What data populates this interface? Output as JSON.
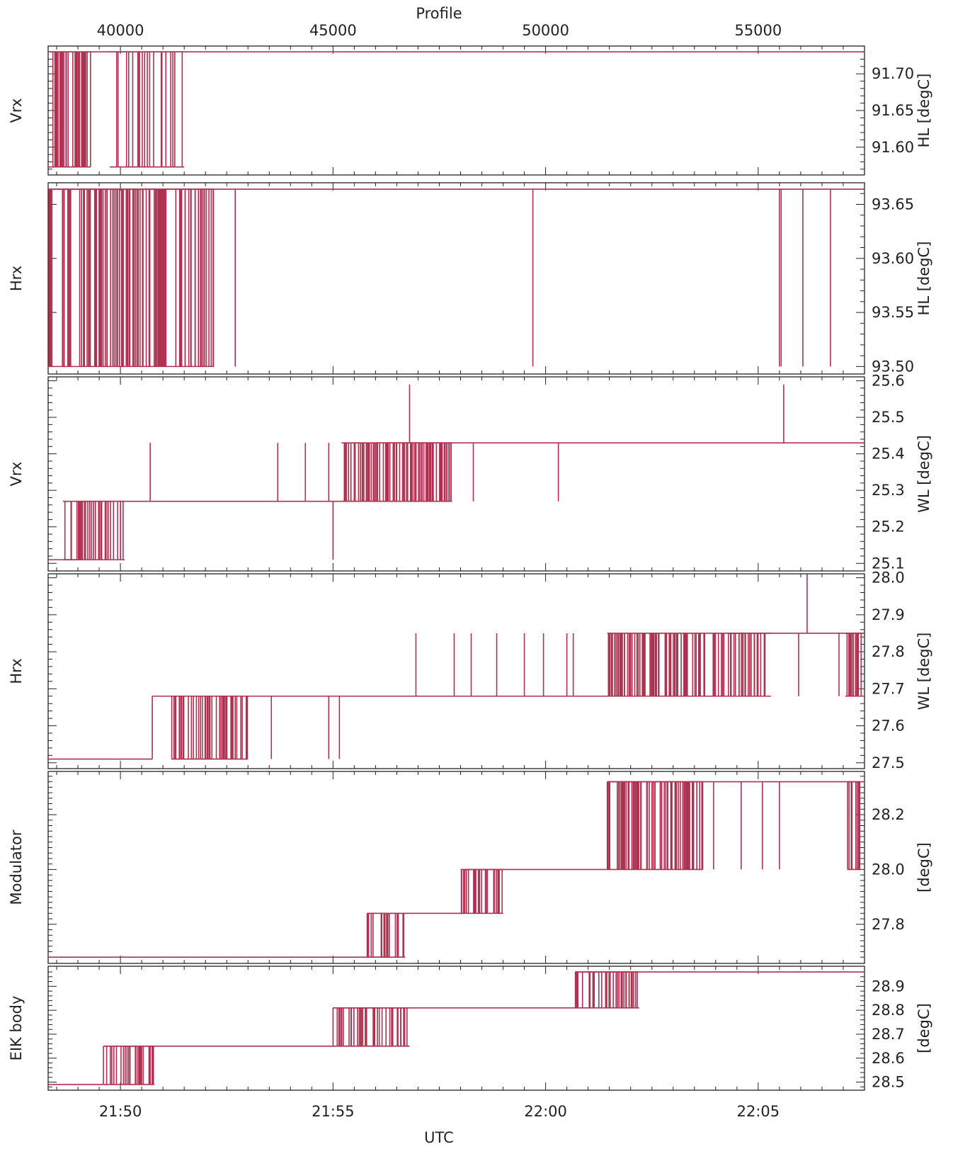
{
  "figure": {
    "top_axis_label": "Profile",
    "bottom_axis_label": "UTC",
    "top_ticks": [
      {
        "value": 40000,
        "label": "40000"
      },
      {
        "value": 45000,
        "label": "45000"
      },
      {
        "value": 50000,
        "label": "50000"
      },
      {
        "value": 55000,
        "label": "55000"
      }
    ],
    "bottom_ticks": [
      {
        "value": 40000,
        "label": "21:50"
      },
      {
        "value": 45000,
        "label": "21:55"
      },
      {
        "value": 50000,
        "label": "22:00"
      },
      {
        "value": 55000,
        "label": "22:05"
      }
    ],
    "x_range": [
      38300,
      57500
    ],
    "colors": {
      "series": "#b03050",
      "axis": "#222222",
      "background": "#ffffff"
    }
  },
  "chart_data": [
    {
      "type": "line",
      "left_label": "Vrx",
      "right_label": "HL [degC]",
      "ylim": [
        91.565,
        91.735
      ],
      "ticks": [
        91.6,
        91.65,
        91.7
      ],
      "tick_format": 2,
      "levels": [
        91.573,
        91.73
      ],
      "base": 91.73,
      "toggles": [
        {
          "x0": 38300,
          "x1": 39300,
          "n": 34
        },
        {
          "x0": 39750,
          "x1": 41500,
          "n": 22
        }
      ],
      "spikes": []
    },
    {
      "type": "line",
      "left_label": "Hrx",
      "right_label": "HL [degC]",
      "ylim": [
        93.495,
        93.668
      ],
      "ticks": [
        93.5,
        93.55,
        93.6,
        93.65
      ],
      "tick_format": 2,
      "levels": [
        93.5,
        93.664
      ],
      "base": 93.664,
      "toggles": [
        {
          "x0": 38300,
          "x1": 42200,
          "n": 120
        }
      ],
      "spikes": [
        {
          "x": 42700,
          "to": 93.5
        },
        {
          "x": 49700,
          "to": 93.5
        },
        {
          "x": 55500,
          "to": 93.5
        },
        {
          "x": 55540,
          "to": 93.5
        },
        {
          "x": 56050,
          "to": 93.5
        },
        {
          "x": 56700,
          "to": 93.5
        }
      ]
    },
    {
      "type": "line",
      "left_label": "Vrx",
      "right_label": "WL [degC]",
      "ylim": [
        25.085,
        25.605
      ],
      "ticks": [
        25.1,
        25.2,
        25.3,
        25.4,
        25.5,
        25.6
      ],
      "tick_format": 1,
      "levels": [
        25.11,
        25.27,
        25.43
      ],
      "segments": [
        {
          "x0": 38300,
          "x1": 39100,
          "value": 25.11
        },
        {
          "x0": 39100,
          "x1": 41000,
          "value": 25.27
        },
        {
          "x0": 41000,
          "x1": 46000,
          "value": 25.27
        },
        {
          "x0": 46000,
          "x1": 57500,
          "value": 25.43
        }
      ],
      "toggles": [
        {
          "x0": 38650,
          "x1": 40100,
          "n": 36,
          "a": 25.11,
          "b": 25.27
        },
        {
          "x0": 45200,
          "x1": 47800,
          "n": 90,
          "a": 25.27,
          "b": 25.43
        }
      ],
      "spikes": [
        {
          "x": 40700,
          "to": 25.43
        },
        {
          "x": 43700,
          "to": 25.43
        },
        {
          "x": 44350,
          "to": 25.43
        },
        {
          "x": 44900,
          "to": 25.43
        },
        {
          "x": 45000,
          "to": 25.11
        },
        {
          "x": 46800,
          "to": 25.59
        },
        {
          "x": 48300,
          "to": 25.27
        },
        {
          "x": 50300,
          "to": 25.27
        },
        {
          "x": 55600,
          "to": 25.59
        }
      ]
    },
    {
      "type": "line",
      "left_label": "Hrx",
      "right_label": "WL [degC]",
      "ylim": [
        27.49,
        28.005
      ],
      "ticks": [
        27.5,
        27.6,
        27.7,
        27.8,
        27.9,
        28.0
      ],
      "tick_format": 1,
      "levels": [
        27.51,
        27.68,
        27.85
      ],
      "segments": [
        {
          "x0": 38300,
          "x1": 40750,
          "value": 27.51
        },
        {
          "x0": 40750,
          "x1": 45200,
          "value": 27.68
        },
        {
          "x0": 45200,
          "x1": 54300,
          "value": 27.68
        },
        {
          "x0": 54300,
          "x1": 57500,
          "value": 27.85
        }
      ],
      "toggles": [
        {
          "x0": 41200,
          "x1": 43000,
          "n": 50,
          "a": 27.51,
          "b": 27.68
        },
        {
          "x0": 51450,
          "x1": 55300,
          "n": 110,
          "a": 27.68,
          "b": 27.85
        },
        {
          "x0": 57050,
          "x1": 57450,
          "n": 14,
          "a": 27.68,
          "b": 27.85
        }
      ],
      "spikes": [
        {
          "x": 43550,
          "to": 27.51
        },
        {
          "x": 44900,
          "to": 27.51
        },
        {
          "x": 45150,
          "to": 27.51
        },
        {
          "x": 46950,
          "to": 27.85
        },
        {
          "x": 47850,
          "to": 27.85
        },
        {
          "x": 48250,
          "to": 27.85
        },
        {
          "x": 48850,
          "to": 27.85
        },
        {
          "x": 49500,
          "to": 27.85
        },
        {
          "x": 49950,
          "to": 27.85
        },
        {
          "x": 50500,
          "to": 27.85
        },
        {
          "x": 50650,
          "to": 27.85
        },
        {
          "x": 55950,
          "to": 27.68
        },
        {
          "x": 56150,
          "to": 28.01
        },
        {
          "x": 56900,
          "to": 27.68
        }
      ]
    },
    {
      "type": "line",
      "left_label": "Modulator",
      "right_label": "[degC]",
      "ylim": [
        27.665,
        28.35
      ],
      "ticks": [
        27.8,
        28.0,
        28.2
      ],
      "tick_format": 1,
      "levels": [
        27.68,
        27.84,
        28.0,
        28.32
      ],
      "segments": [
        {
          "x0": 38300,
          "x1": 46200,
          "value": 27.68
        },
        {
          "x0": 46200,
          "x1": 48100,
          "value": 27.84
        },
        {
          "x0": 48100,
          "x1": 51450,
          "value": 28.0
        },
        {
          "x0": 51450,
          "x1": 57500,
          "value": 28.32
        }
      ],
      "toggles": [
        {
          "x0": 45800,
          "x1": 46700,
          "n": 22,
          "a": 27.68,
          "b": 27.84
        },
        {
          "x0": 48000,
          "x1": 49000,
          "n": 26,
          "a": 27.84,
          "b": 28.0
        },
        {
          "x0": 51450,
          "x1": 53700,
          "n": 70,
          "a": 28.0,
          "b": 28.32
        },
        {
          "x0": 57100,
          "x1": 57400,
          "n": 10,
          "a": 28.0,
          "b": 28.32
        }
      ],
      "spikes": [
        {
          "x": 53950,
          "to": 28.0
        },
        {
          "x": 54600,
          "to": 28.0
        },
        {
          "x": 55100,
          "to": 28.0
        },
        {
          "x": 55500,
          "to": 28.0
        }
      ]
    },
    {
      "type": "line",
      "left_label": "EIK body",
      "right_label": "[degC]",
      "ylim": [
        28.475,
        28.975
      ],
      "ticks": [
        28.5,
        28.6,
        28.7,
        28.8,
        28.9
      ],
      "tick_format": 1,
      "levels": [
        28.49,
        28.65,
        28.81,
        28.96
      ],
      "segments": [
        {
          "x0": 38300,
          "x1": 39600,
          "value": 28.49
        },
        {
          "x0": 39600,
          "x1": 45000,
          "value": 28.65
        },
        {
          "x0": 45000,
          "x1": 50700,
          "value": 28.81
        },
        {
          "x0": 50700,
          "x1": 57500,
          "value": 28.96
        }
      ],
      "toggles": [
        {
          "x0": 39600,
          "x1": 40800,
          "n": 28,
          "a": 28.49,
          "b": 28.65
        },
        {
          "x0": 45000,
          "x1": 46800,
          "n": 40,
          "a": 28.65,
          "b": 28.81
        },
        {
          "x0": 50700,
          "x1": 52200,
          "n": 38,
          "a": 28.81,
          "b": 28.96
        }
      ],
      "spikes": []
    }
  ]
}
